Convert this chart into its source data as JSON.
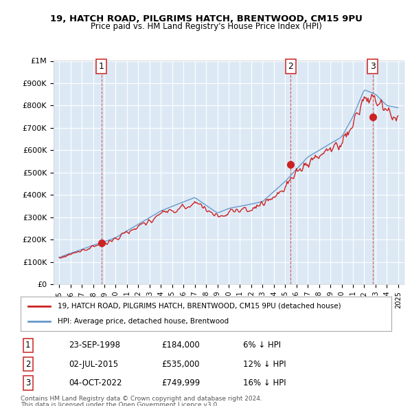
{
  "title1": "19, HATCH ROAD, PILGRIMS HATCH, BRENTWOOD, CM15 9PU",
  "title2": "Price paid vs. HM Land Registry's House Price Index (HPI)",
  "ylabel_ticks": [
    "£0",
    "£100K",
    "£200K",
    "£300K",
    "£400K",
    "£500K",
    "£600K",
    "£700K",
    "£800K",
    "£900K",
    "£1M"
  ],
  "ytick_vals": [
    0,
    100000,
    200000,
    300000,
    400000,
    500000,
    600000,
    700000,
    800000,
    900000,
    1000000
  ],
  "xlim_start": 1994.5,
  "xlim_end": 2025.5,
  "ylim_min": 0,
  "ylim_max": 1000000,
  "transactions": [
    {
      "num": 1,
      "date_str": "23-SEP-1998",
      "year": 1998.73,
      "price": 184000,
      "label": "£184,000",
      "pct": "6%"
    },
    {
      "num": 2,
      "date_str": "02-JUL-2015",
      "year": 2015.5,
      "price": 535000,
      "label": "£535,000",
      "pct": "12%"
    },
    {
      "num": 3,
      "date_str": "04-OCT-2022",
      "year": 2022.75,
      "price": 749999,
      "label": "£749,999",
      "pct": "16%"
    }
  ],
  "legend_line1": "19, HATCH ROAD, PILGRIMS HATCH, BRENTWOOD, CM15 9PU (detached house)",
  "legend_line2": "HPI: Average price, detached house, Brentwood",
  "footer1": "Contains HM Land Registry data © Crown copyright and database right 2024.",
  "footer2": "This data is licensed under the Open Government Licence v3.0.",
  "hpi_color": "#6699cc",
  "price_color": "#cc2222",
  "bg_color": "#dce9f5",
  "plot_bg": "#dce9f5",
  "grid_color": "#ffffff",
  "vline_color": "#cc3333",
  "marker_color": "#cc2222"
}
